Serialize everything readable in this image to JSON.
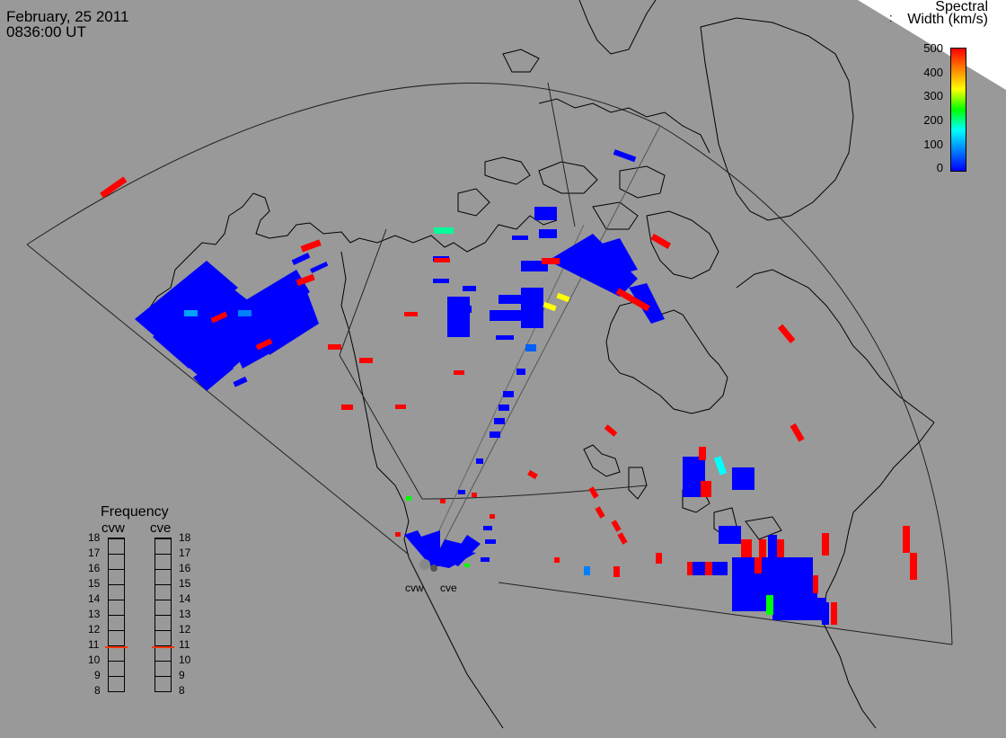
{
  "header": {
    "date": "February, 25 2011",
    "time": "0836:00 UT"
  },
  "colorbar": {
    "title_line1": "Spectral",
    "title_line2": "Width (km/s)",
    "min": 0,
    "max": 500,
    "ticks": [
      "500",
      "400",
      "300",
      "200",
      "100",
      "0"
    ],
    "gradient": [
      "#0000ff",
      "#0080ff",
      "#00ffff",
      "#00ff00",
      "#ffff00",
      "#ff8000",
      "#ff0000"
    ],
    "dots": ":"
  },
  "frequency_panel": {
    "title": "Frequency",
    "columns": [
      {
        "label": "cvw",
        "value": 10.9
      },
      {
        "label": "cve",
        "value": 10.9
      }
    ],
    "ticks": [
      "18",
      "17",
      "16",
      "15",
      "14",
      "13",
      "12",
      "11",
      "10",
      "9",
      "8"
    ],
    "marker_color": "#ff3300"
  },
  "radars": [
    {
      "label": "cvw"
    },
    {
      "label": "cve"
    }
  ],
  "colors": {
    "background": "#999999",
    "low": "#0000ff",
    "high": "#ff0000",
    "coastline": "#000000"
  }
}
